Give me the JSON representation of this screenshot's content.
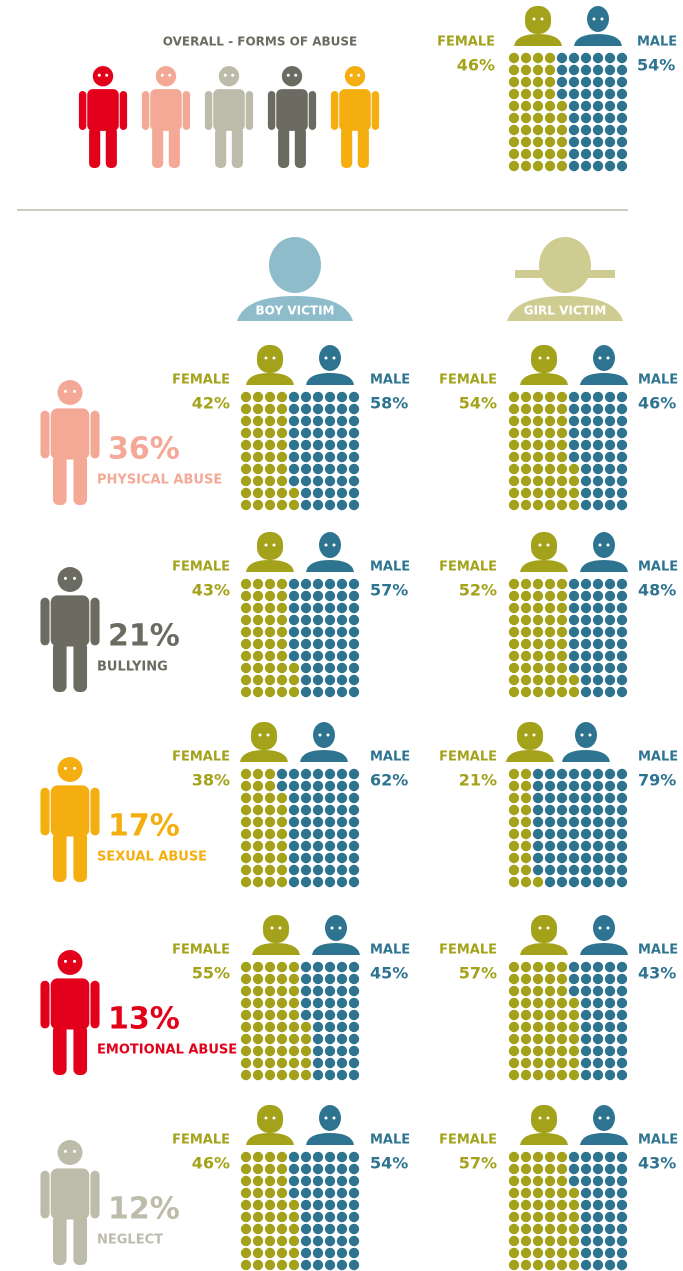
{
  "overall": {
    "title": "OVERALL - FORMS OF ABUSE",
    "chart": {
      "type": "waffle",
      "categories": [
        "FEMALE",
        "MALE"
      ],
      "values": [
        46,
        54
      ],
      "value_labels": [
        "46%",
        "54%"
      ],
      "colors": [
        "#a3a21a",
        "#2e7491"
      ]
    }
  },
  "victims": [
    "BOY VICTIM",
    "GIRL VICTIM"
  ],
  "forms": [
    {
      "name": "PHYSICAL ABUSE",
      "percent": 36,
      "percent_label": "36%",
      "color": "#f4a896",
      "charts": [
        {
          "type": "waffle",
          "categories": [
            "FEMALE",
            "MALE"
          ],
          "values": [
            42,
            58
          ],
          "value_labels": [
            "42%",
            "58%"
          ],
          "colors": [
            "#a3a21a",
            "#2e7491"
          ]
        },
        {
          "type": "waffle",
          "categories": [
            "FEMALE",
            "MALE"
          ],
          "values": [
            54,
            46
          ],
          "value_labels": [
            "54%",
            "46%"
          ],
          "colors": [
            "#a3a21a",
            "#2e7491"
          ]
        }
      ]
    },
    {
      "name": "BULLYING",
      "percent": 21,
      "percent_label": "21%",
      "color": "#6b6b61",
      "charts": [
        {
          "type": "waffle",
          "categories": [
            "FEMALE",
            "MALE"
          ],
          "values": [
            43,
            57
          ],
          "value_labels": [
            "43%",
            "57%"
          ],
          "colors": [
            "#a3a21a",
            "#2e7491"
          ]
        },
        {
          "type": "waffle",
          "categories": [
            "FEMALE",
            "MALE"
          ],
          "values": [
            52,
            48
          ],
          "value_labels": [
            "52%",
            "48%"
          ],
          "colors": [
            "#a3a21a",
            "#2e7491"
          ]
        }
      ]
    },
    {
      "name": "SEXUAL ABUSE",
      "percent": 17,
      "percent_label": "17%",
      "color": "#f5ae0f",
      "charts": [
        {
          "type": "waffle",
          "categories": [
            "FEMALE",
            "MALE"
          ],
          "values": [
            38,
            62
          ],
          "value_labels": [
            "38%",
            "62%"
          ],
          "colors": [
            "#a3a21a",
            "#2e7491"
          ]
        },
        {
          "type": "waffle",
          "categories": [
            "FEMALE",
            "MALE"
          ],
          "values": [
            21,
            79
          ],
          "value_labels": [
            "21%",
            "79%"
          ],
          "colors": [
            "#a3a21a",
            "#2e7491"
          ]
        }
      ]
    },
    {
      "name": "EMOTIONAL ABUSE",
      "percent": 13,
      "percent_label": "13%",
      "color": "#e2001a",
      "charts": [
        {
          "type": "waffle",
          "categories": [
            "FEMALE",
            "MALE"
          ],
          "values": [
            55,
            45
          ],
          "value_labels": [
            "55%",
            "45%"
          ],
          "colors": [
            "#a3a21a",
            "#2e7491"
          ]
        },
        {
          "type": "waffle",
          "categories": [
            "FEMALE",
            "MALE"
          ],
          "values": [
            57,
            43
          ],
          "value_labels": [
            "57%",
            "43%"
          ],
          "colors": [
            "#a3a21a",
            "#2e7491"
          ]
        }
      ]
    },
    {
      "name": "NEGLECT",
      "percent": 12,
      "percent_label": "12%",
      "color": "#bdbcab",
      "charts": [
        {
          "type": "waffle",
          "categories": [
            "FEMALE",
            "MALE"
          ],
          "values": [
            46,
            54
          ],
          "value_labels": [
            "46%",
            "54%"
          ],
          "colors": [
            "#a3a21a",
            "#2e7491"
          ]
        },
        {
          "type": "waffle",
          "categories": [
            "FEMALE",
            "MALE"
          ],
          "values": [
            57,
            43
          ],
          "value_labels": [
            "57%",
            "43%"
          ],
          "colors": [
            "#a3a21a",
            "#2e7491"
          ]
        }
      ]
    }
  ]
}
